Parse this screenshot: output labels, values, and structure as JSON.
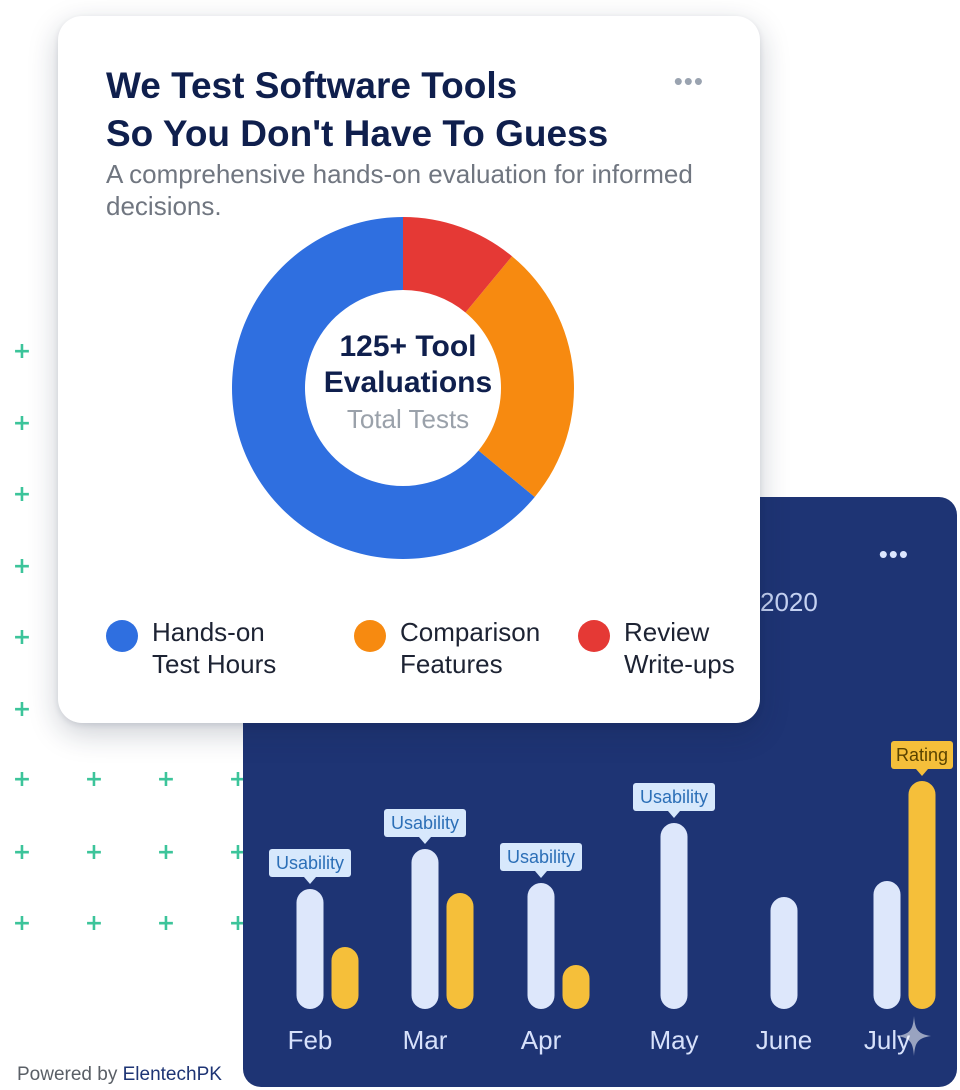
{
  "donut_card": {
    "title_line1": "We Test Software Tools",
    "title_line2": "So You Don't Have To Guess",
    "subtitle": "A comprehensive hands-on evaluation for informed decisions.",
    "menu_icon": "more-horizontal-icon",
    "center_line1": "125+ Tool",
    "center_line2": "Evaluations",
    "center_sub": "Total Tests",
    "legend": [
      {
        "line1": "Hands-on",
        "line2": "Test Hours",
        "color": "#2f6fe0"
      },
      {
        "line1": "Comparison",
        "line2": "Features",
        "color": "#f78a10"
      },
      {
        "line1": "Review",
        "line2": "Write-ups",
        "color": "#e53935"
      }
    ]
  },
  "bar_card": {
    "year_label": "2020",
    "menu_icon": "more-horizontal-icon"
  },
  "footer": {
    "prefix": "Powered by",
    "brand": "ElentechPK"
  },
  "chart_data": [
    {
      "type": "pie",
      "variant": "donut",
      "categories": [
        "Hands-on Test Hours",
        "Comparison Features",
        "Review Write-ups"
      ],
      "values": [
        64,
        25,
        11
      ],
      "colors": [
        "#2f6fe0",
        "#f78a10",
        "#e53935"
      ]
    },
    {
      "type": "bar",
      "categories": [
        "Feb",
        "Mar",
        "Apr",
        "May",
        "June",
        "July"
      ],
      "series": [
        {
          "values": [
            60,
            80,
            63,
            93,
            56,
            64
          ],
          "color": "#dde7fb"
        },
        {
          "values": [
            31,
            58,
            22,
            null,
            null,
            114
          ],
          "color": "#f5bf3a"
        }
      ],
      "ylim": [
        0,
        120
      ],
      "annotations": [
        {
          "category": "Feb",
          "series": 0,
          "text": "Usability"
        },
        {
          "category": "Mar",
          "series": 0,
          "text": "Usability"
        },
        {
          "category": "Apr",
          "series": 0,
          "text": "Usability"
        },
        {
          "category": "May",
          "series": 0,
          "text": "Usability"
        },
        {
          "category": "July",
          "series": 1,
          "text": "Rating"
        }
      ]
    }
  ]
}
